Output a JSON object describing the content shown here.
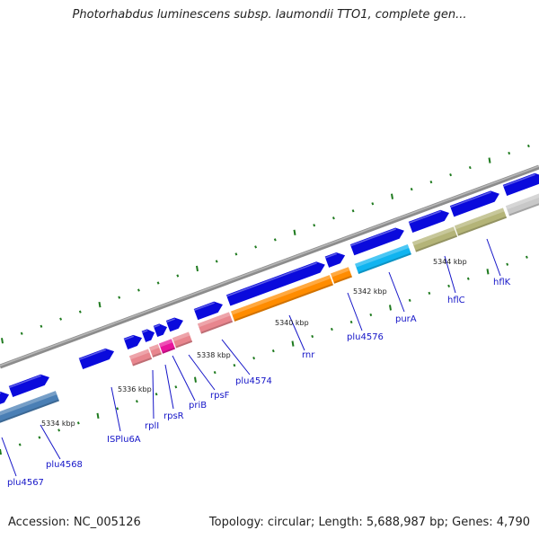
{
  "title": "Photorhabdus luminescens subsp. laumondii TTO1, complete gen...",
  "footer": {
    "accession": "Accession: NC_005126",
    "meta": "Topology: circular; Length: 5,688,987 bp; Genes: 4,790"
  },
  "colors": {
    "backbone": "#8c8c8c",
    "cds": "#0a0adc",
    "tick": "#1e7a1e",
    "label": "#1515c8"
  },
  "ruler_labels": [
    "5334 kbp",
    "5336 kbp",
    "5338 kbp",
    "5340 kbp",
    "5342 kbp",
    "5344 kbp"
  ],
  "gene_labels": [
    "plu4567",
    "plu4568",
    "ISPlu6A",
    "rplI",
    "rpsR",
    "priB",
    "rpsF",
    "plu4574",
    "rnr",
    "plu4576",
    "purA",
    "hflC",
    "hflK"
  ],
  "feature_colors": {
    "steel": "#4a7fb5",
    "salmon": "#e8868e",
    "magenta": "#e8149c",
    "orange": "#ff8c00",
    "cyan": "#10b4f0",
    "olive": "#b4b478",
    "grey": "#c8c8c8"
  }
}
